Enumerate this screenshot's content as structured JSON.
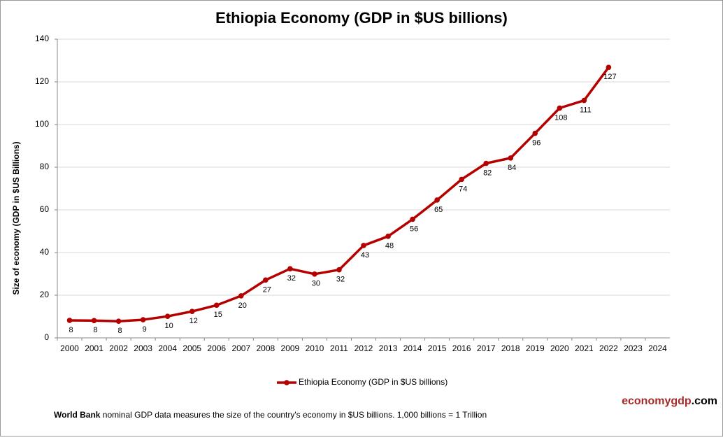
{
  "chart_data": {
    "type": "line",
    "title": "Ethiopia Economy (GDP in $US billions)",
    "y_label": "Size of economy (GDP in $US Billions)",
    "categories": [
      "2000",
      "2001",
      "2002",
      "2003",
      "2004",
      "2005",
      "2006",
      "2007",
      "2008",
      "2009",
      "2010",
      "2011",
      "2012",
      "2013",
      "2014",
      "2015",
      "2016",
      "2017",
      "2018",
      "2019",
      "2020",
      "2021",
      "2022",
      "2023",
      "2024"
    ],
    "series": [
      {
        "name": "Ethiopia Economy (GDP in $US billions)",
        "color": "#b50000",
        "values": [
          8.2,
          8.1,
          7.8,
          8.5,
          10.1,
          12.4,
          15.3,
          19.7,
          27.1,
          32.4,
          29.9,
          31.9,
          43.3,
          47.6,
          55.6,
          64.6,
          74.3,
          81.8,
          84.3,
          95.9,
          107.7,
          111.3,
          126.8,
          null,
          null
        ],
        "value_labels": [
          "8",
          "8",
          "8",
          "9",
          "10",
          "12",
          "15",
          "20",
          "27",
          "32",
          "30",
          "32",
          "43",
          "48",
          "56",
          "65",
          "74",
          "82",
          "84",
          "96",
          "108",
          "111",
          "127",
          null,
          null
        ]
      }
    ],
    "ylim": [
      0,
      140
    ],
    "yticks": [
      0,
      20,
      40,
      60,
      80,
      100,
      120,
      140
    ],
    "grid": true,
    "legend": "bottom",
    "brand": {
      "main": "economygdp",
      "suffix": ".com"
    },
    "footnote": {
      "bold": "World Bank",
      "text": " nominal GDP data  measures the size of the country's economy in $US billions. 1,000 billions = 1 Trillion"
    }
  }
}
